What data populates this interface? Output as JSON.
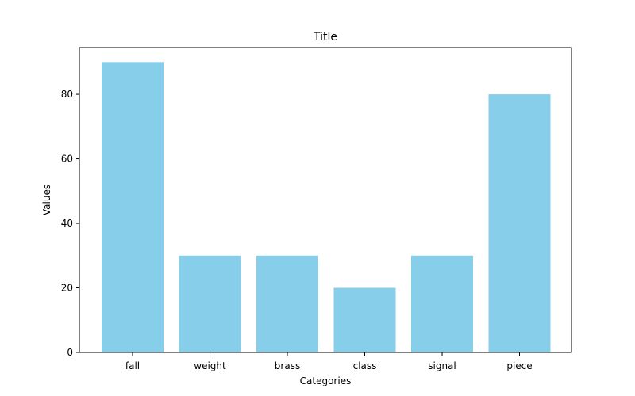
{
  "chart_data": {
    "type": "bar",
    "title": "Title",
    "xlabel": "Categories",
    "ylabel": "Values",
    "categories": [
      "fall",
      "weight",
      "brass",
      "class",
      "signal",
      "piece"
    ],
    "values": [
      90,
      30,
      30,
      20,
      30,
      80
    ],
    "ylim": [
      0,
      94.5
    ],
    "yticks": [
      0,
      20,
      40,
      60,
      80
    ],
    "grid": false,
    "bar_color": "#87CEEB",
    "axis_color": "#000000"
  }
}
